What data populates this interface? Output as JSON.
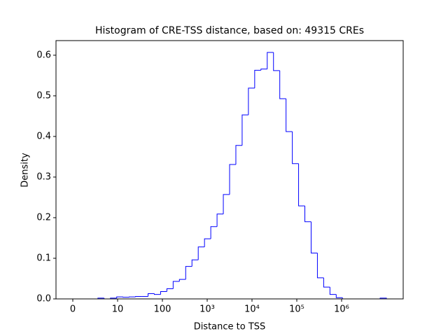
{
  "chart_data": {
    "type": "histogram",
    "title": "Histogram of CRE-TSS distance, based on: 49315 CREs",
    "xlabel": "Distance to TSS",
    "ylabel": "Density",
    "color": "#0000ff",
    "bins": [
      0,
      0.14,
      0.28,
      0.42,
      0.56,
      0.7,
      0.84,
      0.98,
      1.12,
      1.26,
      1.4,
      1.54,
      1.68,
      1.82,
      1.96,
      2.1,
      2.24,
      2.38,
      2.52,
      2.66,
      2.8,
      2.94,
      3.08,
      3.22,
      3.36,
      3.5,
      3.64,
      3.78,
      3.92,
      4.06,
      4.2,
      4.34,
      4.48,
      4.62,
      4.76,
      4.9,
      5.04,
      5.18,
      5.32,
      5.46,
      5.6,
      5.74,
      5.88,
      6.02,
      6.16,
      6.3,
      6.44,
      6.58,
      6.72,
      6.86,
      7.0
    ],
    "values": [
      0,
      0,
      0,
      0,
      0.002,
      0,
      0.002,
      0.005,
      0.004,
      0.005,
      0.006,
      0.006,
      0.013,
      0.011,
      0.018,
      0.025,
      0.043,
      0.048,
      0.08,
      0.096,
      0.128,
      0.148,
      0.178,
      0.209,
      0.257,
      0.331,
      0.378,
      0.453,
      0.519,
      0.563,
      0.566,
      0.607,
      0.562,
      0.493,
      0.412,
      0.333,
      0.229,
      0.19,
      0.113,
      0.052,
      0.029,
      0.011,
      0.003,
      0,
      0,
      0,
      0,
      0,
      0,
      0.002
    ],
    "xlim": [
      -0.375,
      7.375
    ],
    "xticks": [
      0,
      {
        "value": 1,
        "label": "10"
      },
      {
        "value": 2,
        "label": "100"
      },
      {
        "value": 3,
        "label": "10³"
      },
      {
        "value": 4,
        "label": "10⁴"
      },
      {
        "value": 5,
        "label": "10⁵"
      },
      {
        "value": 6,
        "label": "10⁶"
      }
    ],
    "ylim": [
      0,
      0.636
    ],
    "yticks": [
      {
        "value": 0,
        "label": "0.0"
      },
      0.1,
      0.2,
      0.3,
      0.4,
      0.5,
      0.6
    ]
  }
}
